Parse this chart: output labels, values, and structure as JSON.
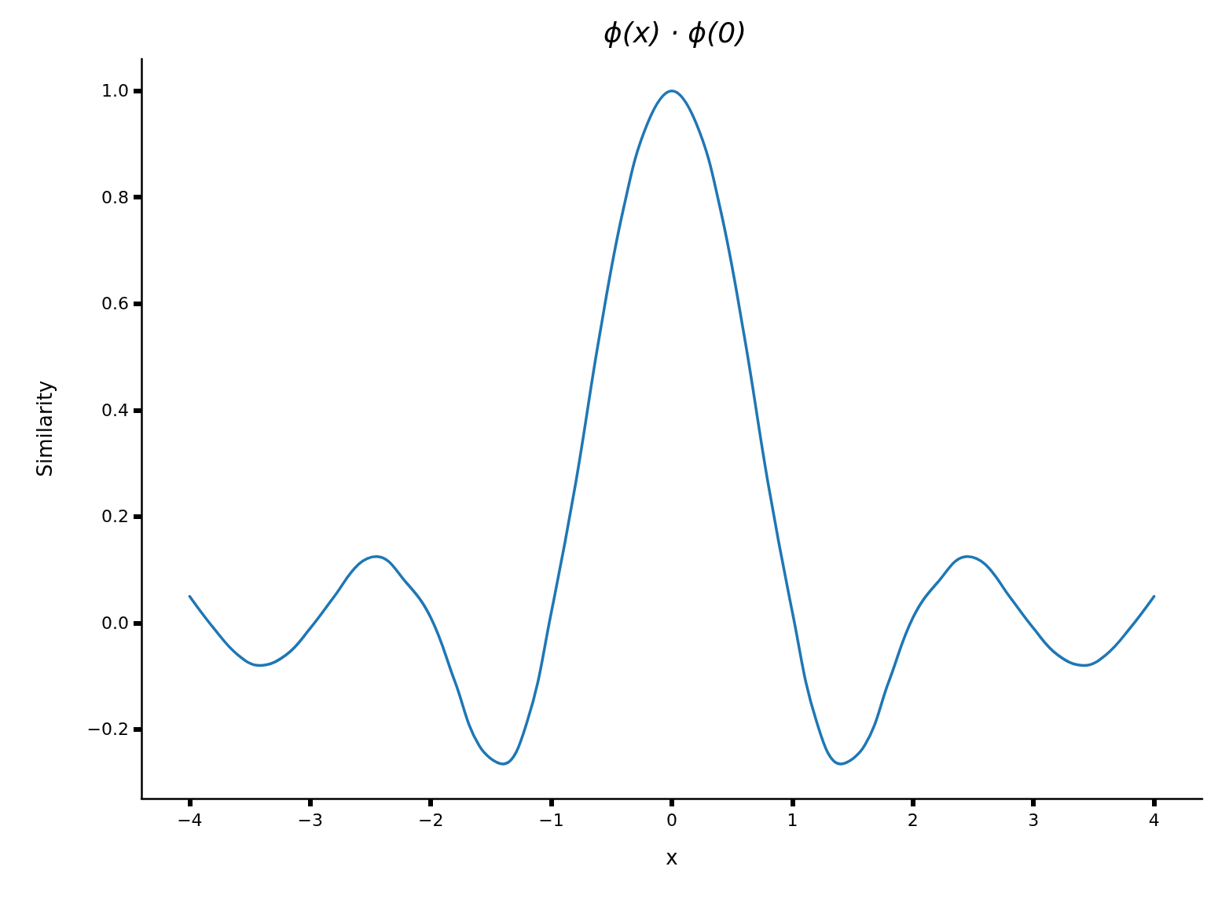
{
  "chart_data": {
    "type": "line",
    "title": "ϕ(x) · ϕ(0)",
    "xlabel": "x",
    "ylabel": "Similarity",
    "x": [
      -4,
      -3.8,
      -3.6,
      -3.42,
      -3.2,
      -3,
      -2.8,
      -2.6,
      -2.45,
      -2.2,
      -2,
      -1.8,
      -1.6,
      -1.4,
      -1.2,
      -1,
      -0.8,
      -0.6,
      -0.4,
      -0.2,
      0,
      0.2,
      0.4,
      0.6,
      0.8,
      1,
      1.2,
      1.4,
      1.6,
      1.8,
      2,
      2.2,
      2.45,
      2.6,
      2.8,
      3,
      3.2,
      3.42,
      3.6,
      3.8,
      4
    ],
    "series": [
      {
        "color": "#1f77b4",
        "values": [
          0.05,
          -0.01,
          -0.06,
          -0.08,
          -0.06,
          -0.01,
          0.05,
          0.11,
          0.125,
          0.075,
          0.01,
          -0.11,
          -0.23,
          -0.265,
          -0.185,
          0.02,
          0.26,
          0.54,
          0.78,
          0.94,
          1.0,
          0.94,
          0.78,
          0.54,
          0.26,
          0.02,
          -0.185,
          -0.265,
          -0.23,
          -0.11,
          0.01,
          0.075,
          0.125,
          0.11,
          0.05,
          -0.01,
          -0.06,
          -0.08,
          -0.06,
          -0.01,
          0.05
        ]
      }
    ],
    "xlim": [
      -4.4,
      4.4
    ],
    "ylim": [
      -0.33,
      1.06
    ],
    "xticks": [
      {
        "value": -4,
        "label": "−4"
      },
      {
        "value": -3,
        "label": "−3"
      },
      {
        "value": -2,
        "label": "−2"
      },
      {
        "value": -1,
        "label": "−1"
      },
      0,
      1,
      2,
      3,
      4
    ],
    "yticks": [
      {
        "value": -0.2,
        "label": "−0.2"
      },
      {
        "value": 0,
        "label": "0.0"
      },
      {
        "value": 0.2,
        "label": "0.2"
      },
      {
        "value": 0.4,
        "label": "0.4"
      },
      {
        "value": 0.6,
        "label": "0.6"
      },
      {
        "value": 0.8,
        "label": "0.8"
      },
      {
        "value": 1,
        "label": "1.0"
      }
    ],
    "grid": false,
    "marker": "none",
    "line_style": "solid"
  }
}
